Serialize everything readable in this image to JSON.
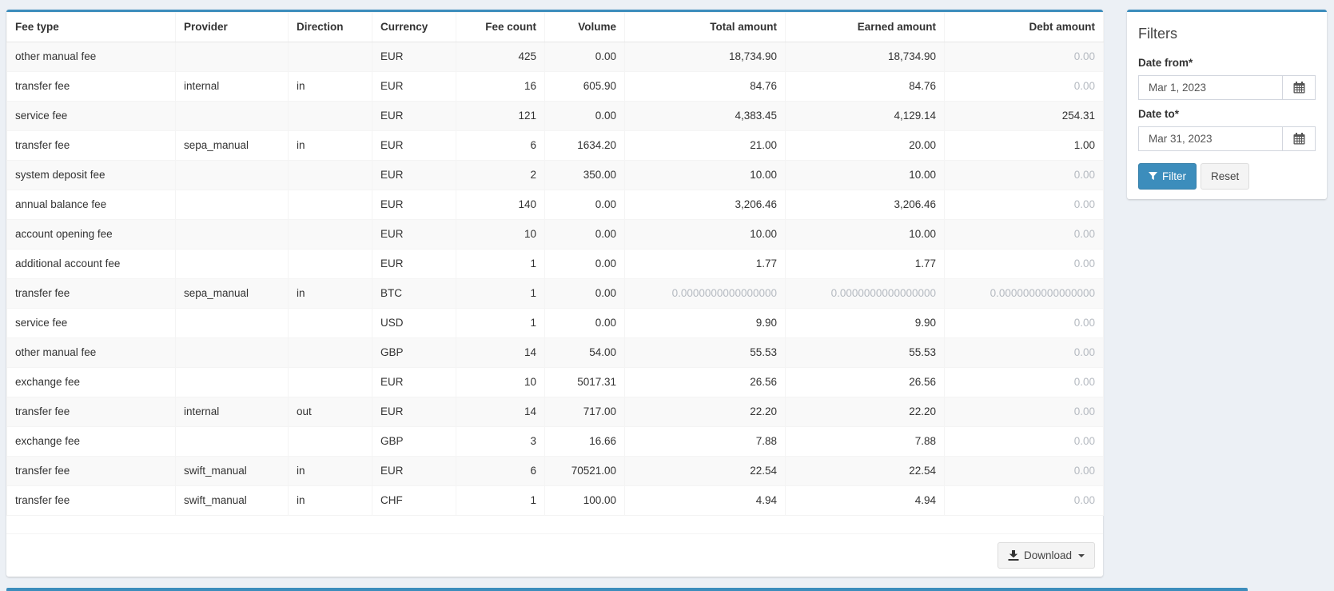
{
  "colors": {
    "accent": "#3c8dbc",
    "accent_border": "#367fa9",
    "muted_value": "#b5bac1",
    "page_background": "#ecf0f5",
    "stripe": "#f9f9f9"
  },
  "table": {
    "columns": [
      "Fee type",
      "Provider",
      "Direction",
      "Currency",
      "Fee count",
      "Volume",
      "Total amount",
      "Earned amount",
      "Debt amount"
    ],
    "rows": [
      [
        "other manual fee",
        "",
        "",
        "EUR",
        "425",
        "0.00",
        "18,734.90",
        "18,734.90",
        "0.00"
      ],
      [
        "transfer fee",
        "internal",
        "in",
        "EUR",
        "16",
        "605.90",
        "84.76",
        "84.76",
        "0.00"
      ],
      [
        "service fee",
        "",
        "",
        "EUR",
        "121",
        "0.00",
        "4,383.45",
        "4,129.14",
        "254.31"
      ],
      [
        "transfer fee",
        "sepa_manual",
        "in",
        "EUR",
        "6",
        "1634.20",
        "21.00",
        "20.00",
        "1.00"
      ],
      [
        "system deposit fee",
        "",
        "",
        "EUR",
        "2",
        "350.00",
        "10.00",
        "10.00",
        "0.00"
      ],
      [
        "annual balance fee",
        "",
        "",
        "EUR",
        "140",
        "0.00",
        "3,206.46",
        "3,206.46",
        "0.00"
      ],
      [
        "account opening fee",
        "",
        "",
        "EUR",
        "10",
        "0.00",
        "10.00",
        "10.00",
        "0.00"
      ],
      [
        "additional account fee",
        "",
        "",
        "EUR",
        "1",
        "0.00",
        "1.77",
        "1.77",
        "0.00"
      ],
      [
        "transfer fee",
        "sepa_manual",
        "in",
        "BTC",
        "1",
        "0.00",
        "0.0000000000000000",
        "0.0000000000000000",
        "0.0000000000000000"
      ],
      [
        "service fee",
        "",
        "",
        "USD",
        "1",
        "0.00",
        "9.90",
        "9.90",
        "0.00"
      ],
      [
        "other manual fee",
        "",
        "",
        "GBP",
        "14",
        "54.00",
        "55.53",
        "55.53",
        "0.00"
      ],
      [
        "exchange fee",
        "",
        "",
        "EUR",
        "10",
        "5017.31",
        "26.56",
        "26.56",
        "0.00"
      ],
      [
        "transfer fee",
        "internal",
        "out",
        "EUR",
        "14",
        "717.00",
        "22.20",
        "22.20",
        "0.00"
      ],
      [
        "exchange fee",
        "",
        "",
        "GBP",
        "3",
        "16.66",
        "7.88",
        "7.88",
        "0.00"
      ],
      [
        "transfer fee",
        "swift_manual",
        "in",
        "EUR",
        "6",
        "70521.00",
        "22.54",
        "22.54",
        "0.00"
      ],
      [
        "transfer fee",
        "swift_manual",
        "in",
        "CHF",
        "1",
        "100.00",
        "4.94",
        "4.94",
        "0.00"
      ]
    ]
  },
  "footer": {
    "download_label": "Download",
    "download_icon": "download-icon",
    "caret_icon": "caret-down-icon"
  },
  "filters": {
    "title": "Filters",
    "date_from": {
      "label": "Date from*",
      "value": "Mar 1, 2023"
    },
    "date_to": {
      "label": "Date to*",
      "value": "Mar 31, 2023"
    },
    "filter_button": "Filter",
    "reset_button": "Reset",
    "calendar_icon": "calendar-icon",
    "funnel_icon": "funnel-icon"
  }
}
